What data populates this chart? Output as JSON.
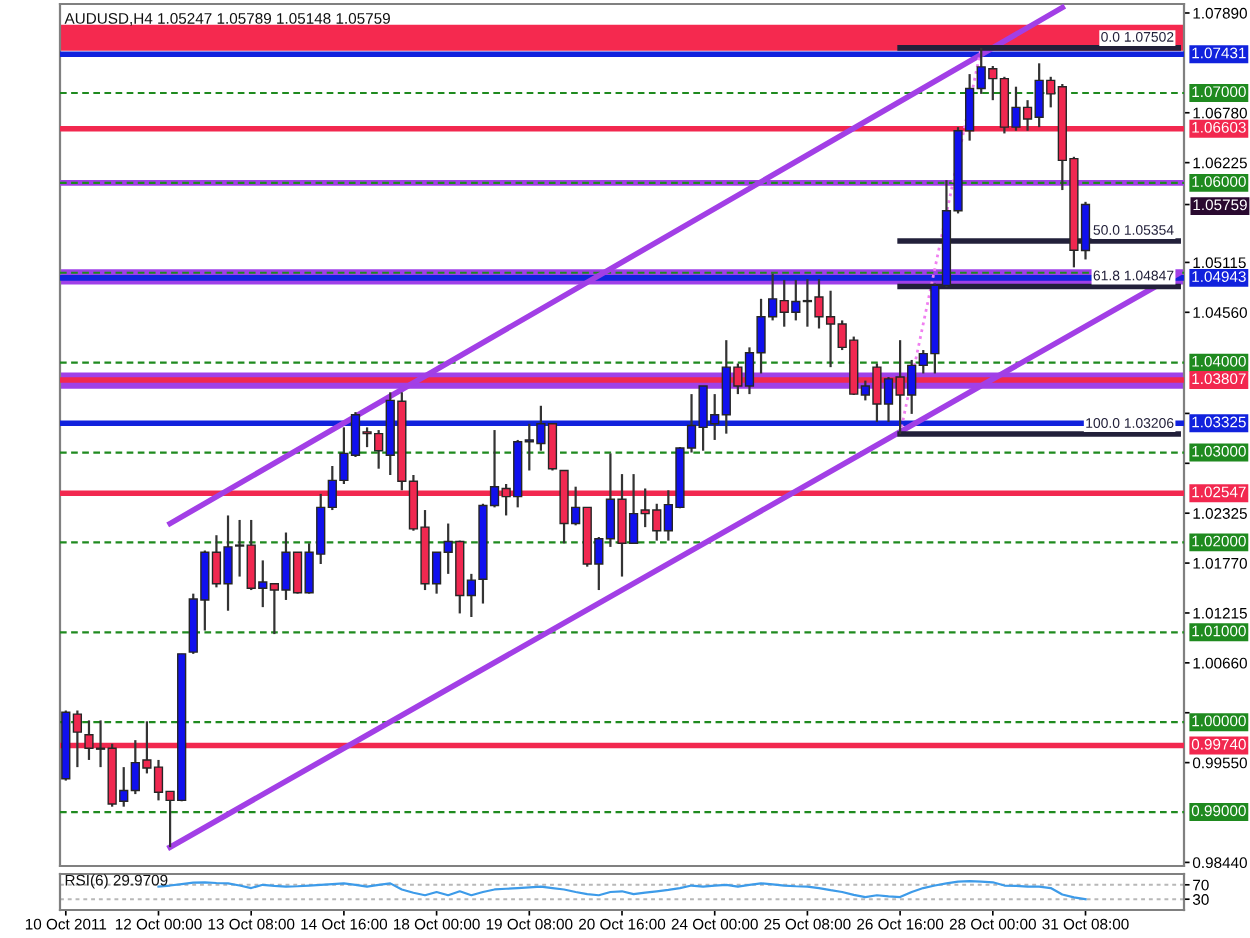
{
  "chart_data": [
    {
      "type": "candlestick",
      "title": "AUDUSD,H4 1.05247 1.05789 1.05148 1.05759",
      "categories": [
        null,
        null,
        null,
        null,
        null,
        null,
        null,
        null,
        null,
        null,
        null,
        null,
        null,
        null,
        null,
        null,
        null,
        null,
        null,
        null,
        null,
        null,
        null,
        null,
        null,
        null,
        null,
        null,
        null,
        null,
        null,
        null,
        null,
        null,
        null,
        null,
        null,
        null,
        null,
        null,
        null,
        null,
        null,
        null,
        null,
        null,
        null,
        null,
        null,
        null,
        null,
        null,
        null,
        null,
        null,
        null,
        null,
        null,
        null,
        null,
        null,
        null,
        null,
        null,
        null,
        null,
        null,
        null,
        null,
        null,
        null,
        null,
        null,
        null,
        null,
        null,
        null,
        null,
        null,
        null,
        null,
        null,
        null,
        null,
        null,
        null,
        null,
        null,
        null,
        null,
        null,
        null,
        null,
        null,
        null,
        null,
        null
      ],
      "ohlc": [
        [
          0.9937,
          1.0013,
          0.9935,
          1.0011
        ],
        [
          1.0009,
          1.0013,
          0.995,
          0.9989
        ],
        [
          0.9986,
          1.0002,
          0.9958,
          0.9971
        ],
        [
          0.9971,
          1.0002,
          0.995,
          0.997
        ],
        [
          0.9971,
          0.9976,
          0.9906,
          0.9909
        ],
        [
          0.9912,
          0.995,
          0.9906,
          0.9924
        ],
        [
          0.9924,
          0.998,
          0.992,
          0.9955
        ],
        [
          0.9958,
          1.0001,
          0.9943,
          0.9949
        ],
        [
          0.995,
          0.9958,
          0.9913,
          0.9922
        ],
        [
          0.9923,
          0.9923,
          0.9861,
          0.9913
        ],
        [
          0.9913,
          1.0076,
          0.9912,
          1.0076
        ],
        [
          1.0078,
          1.0143,
          1.0076,
          1.0137
        ],
        [
          1.0136,
          1.0191,
          1.0102,
          1.0189
        ],
        [
          1.0189,
          1.0208,
          1.015,
          1.0154
        ],
        [
          1.0154,
          1.023,
          1.0124,
          1.0195
        ],
        [
          1.0196,
          1.0225,
          1.0162,
          1.0197
        ],
        [
          1.0197,
          1.0225,
          1.0147,
          1.0149
        ],
        [
          1.0149,
          1.018,
          1.0128,
          1.0156
        ],
        [
          1.0154,
          1.0154,
          1.0098,
          1.0147
        ],
        [
          1.0147,
          1.0211,
          1.0136,
          1.0189
        ],
        [
          1.0189,
          1.0189,
          1.0143,
          1.0144
        ],
        [
          1.0144,
          1.0199,
          1.0143,
          1.0189
        ],
        [
          1.0187,
          1.0254,
          1.0176,
          1.0239
        ],
        [
          1.0239,
          1.0285,
          1.0236,
          1.0269
        ],
        [
          1.0269,
          1.0328,
          1.0265,
          1.0299
        ],
        [
          1.0297,
          1.0345,
          1.0295,
          1.0342
        ],
        [
          1.0323,
          1.0328,
          1.0306,
          1.0321
        ],
        [
          1.0321,
          1.0325,
          1.0282,
          1.0302
        ],
        [
          1.0297,
          1.0367,
          1.0275,
          1.0358
        ],
        [
          1.0357,
          1.0367,
          1.0258,
          1.0268
        ],
        [
          1.0268,
          1.0275,
          1.0213,
          1.0215
        ],
        [
          1.0217,
          1.0236,
          1.0147,
          1.0154
        ],
        [
          1.0154,
          1.0189,
          1.0143,
          1.0189
        ],
        [
          1.0189,
          1.0221,
          1.0165,
          1.0201
        ],
        [
          1.0201,
          1.0202,
          1.0121,
          1.0141
        ],
        [
          1.0141,
          1.0165,
          1.0117,
          1.0158
        ],
        [
          1.0159,
          1.0243,
          1.0132,
          1.0241
        ],
        [
          1.0241,
          1.0325,
          1.0239,
          1.0262
        ],
        [
          1.026,
          1.0265,
          1.023,
          1.0251
        ],
        [
          1.0251,
          1.0314,
          1.0239,
          1.0312
        ],
        [
          1.0312,
          1.0332,
          1.028,
          1.0314
        ],
        [
          1.031,
          1.0352,
          1.0302,
          1.0332
        ],
        [
          1.0332,
          1.0332,
          1.028,
          1.0282
        ],
        [
          1.028,
          1.028,
          1.0199,
          1.0221
        ],
        [
          1.0221,
          1.0262,
          1.0219,
          1.0239
        ],
        [
          1.0239,
          1.0239,
          1.0173,
          1.0176
        ],
        [
          1.0176,
          1.0206,
          1.0147,
          1.0204
        ],
        [
          1.0204,
          1.0299,
          1.0195,
          1.0248
        ],
        [
          1.0248,
          1.0276,
          1.0162,
          1.0199
        ],
        [
          1.0199,
          1.0276,
          1.0199,
          1.0232
        ],
        [
          1.0236,
          1.026,
          1.0217,
          1.0232
        ],
        [
          1.0236,
          1.0243,
          1.0202,
          1.0213
        ],
        [
          1.0213,
          1.0258,
          1.0202,
          1.0242
        ],
        [
          1.0239,
          1.0306,
          1.0238,
          1.0305
        ],
        [
          1.0305,
          1.0365,
          1.03,
          1.033
        ],
        [
          1.0328,
          1.0374,
          1.0302,
          1.0374
        ],
        [
          1.0332,
          1.0365,
          1.0314,
          1.0342
        ],
        [
          1.0342,
          1.0425,
          1.0321,
          1.0395
        ],
        [
          1.0395,
          1.0399,
          1.0365,
          1.0374
        ],
        [
          1.0374,
          1.0417,
          1.0365,
          1.0411
        ],
        [
          1.0411,
          1.0471,
          1.0388,
          1.0451
        ],
        [
          1.0451,
          1.0499,
          1.0447,
          1.0471
        ],
        [
          1.0469,
          1.0492,
          1.044,
          1.0456
        ],
        [
          1.0456,
          1.0492,
          1.0447,
          1.0468
        ],
        [
          1.0468,
          1.0493,
          1.044,
          1.0469
        ],
        [
          1.0473,
          1.0493,
          1.0438,
          1.0451
        ],
        [
          1.0451,
          1.048,
          1.0395,
          1.0443
        ],
        [
          1.0443,
          1.0447,
          1.0414,
          1.0417
        ],
        [
          1.0425,
          1.0429,
          1.0364,
          1.0365
        ],
        [
          1.0364,
          1.038,
          1.0358,
          1.0374
        ],
        [
          1.0395,
          1.0399,
          1.0334,
          1.0354
        ],
        [
          1.0354,
          1.0384,
          1.0334,
          1.0382
        ],
        [
          1.0384,
          1.0425,
          1.03206,
          1.0364
        ],
        [
          1.0364,
          1.0403,
          1.0343,
          1.0397
        ],
        [
          1.0397,
          1.0414,
          1.0388,
          1.041
        ],
        [
          1.041,
          1.0488,
          1.0388,
          1.0486
        ],
        [
          1.0486,
          1.0603,
          1.0484,
          1.0569
        ],
        [
          1.0569,
          1.0662,
          1.0566,
          1.0658
        ],
        [
          1.0658,
          1.0721,
          1.0647,
          1.0705
        ],
        [
          1.0705,
          1.07502,
          1.0699,
          1.0729
        ],
        [
          1.0727,
          1.073,
          1.0692,
          1.0716
        ],
        [
          1.0716,
          1.0718,
          1.0655,
          1.0662
        ],
        [
          1.0662,
          1.0707,
          1.0658,
          1.0684
        ],
        [
          1.0684,
          1.0692,
          1.0658,
          1.0671
        ],
        [
          1.0673,
          1.0733,
          1.0662,
          1.0714
        ],
        [
          1.0714,
          1.0718,
          1.0684,
          1.0699
        ],
        [
          1.0707,
          1.071,
          1.0592,
          1.0625
        ],
        [
          1.0627,
          1.0629,
          1.0506,
          1.0525
        ],
        [
          1.05247,
          1.05789,
          1.05148,
          1.05759
        ],
        null,
        null,
        null,
        null,
        null,
        null,
        null,
        null
      ],
      "colors": [
        "#1010ee",
        "#f02850",
        "#f02850",
        "#f02850",
        "#f02850",
        "#1010ee",
        "#1010ee",
        "#f02850",
        "#f02850",
        "#f02850",
        "#1010ee",
        "#1010ee",
        "#1010ee",
        "#f02850",
        "#1010ee",
        "#1010ee",
        "#f02850",
        "#1010ee",
        "#f02850",
        "#1010ee",
        "#f02850",
        "#1010ee",
        "#1010ee",
        "#1010ee",
        "#1010ee",
        "#1010ee",
        "#f02850",
        "#f02850",
        "#1010ee",
        "#f02850",
        "#f02850",
        "#f02850",
        "#1010ee",
        "#1010ee",
        "#f02850",
        "#1010ee",
        "#1010ee",
        "#1010ee",
        "#f02850",
        "#1010ee",
        "#1010ee",
        "#1010ee",
        "#f02850",
        "#f02850",
        "#1010ee",
        "#f02850",
        "#1010ee",
        "#1010ee",
        "#f02850",
        "#1010ee",
        "#f02850",
        "#f02850",
        "#1010ee",
        "#1010ee",
        "#1010ee",
        "#1010ee",
        "#1010ee",
        "#1010ee",
        "#f02850",
        "#1010ee",
        "#1010ee",
        "#1010ee",
        "#f02850",
        "#1010ee",
        "#1010ee",
        "#f02850",
        "#f02850",
        "#f02850",
        "#f02850",
        "#1010ee",
        "#f02850",
        "#1010ee",
        "#f02850",
        "#1010ee",
        "#1010ee",
        "#1010ee",
        "#1010ee",
        "#1010ee",
        "#1010ee",
        "#1010ee",
        "#f02850",
        "#f02850",
        "#1010ee",
        "#f02850",
        "#1010ee",
        "#f02850",
        "#f02850",
        "#f02850",
        "#1010ee",
        null,
        null,
        null,
        null,
        null,
        null,
        null,
        null
      ],
      "series": [
        {
          "type": "line",
          "color": "#a23fe6",
          "values": [
            null,
            null,
            null,
            null,
            null,
            null,
            null,
            null,
            null,
            1.0221,
            null,
            null,
            null,
            null,
            null,
            null,
            null,
            null,
            null,
            null,
            null,
            null,
            null,
            null,
            null,
            null,
            null,
            null,
            null,
            null,
            null,
            null,
            null,
            null,
            null,
            null,
            null,
            null,
            null,
            null,
            null,
            null,
            null,
            null,
            null,
            null,
            null,
            null,
            null,
            null,
            null,
            null,
            null,
            null,
            null,
            null,
            null,
            null,
            null,
            null,
            null,
            null,
            null,
            null,
            null,
            null,
            null,
            null,
            null,
            null,
            null,
            null,
            null,
            null,
            null,
            null,
            null,
            null,
            null,
            null,
            null,
            null,
            null,
            null,
            null,
            null,
            1.0795,
            null,
            null,
            null,
            null,
            null,
            null,
            null,
            null,
            null,
            null
          ]
        },
        {
          "type": "line",
          "color": "#a23fe6",
          "values": [
            null,
            null,
            null,
            null,
            null,
            null,
            null,
            null,
            null,
            0.9861,
            null,
            null,
            null,
            null,
            null,
            null,
            null,
            null,
            null,
            null,
            null,
            null,
            null,
            null,
            null,
            null,
            null,
            null,
            null,
            null,
            null,
            null,
            null,
            null,
            null,
            null,
            null,
            null,
            null,
            null,
            null,
            null,
            null,
            null,
            null,
            null,
            null,
            null,
            null,
            null,
            null,
            null,
            null,
            null,
            null,
            null,
            null,
            null,
            null,
            null,
            null,
            null,
            null,
            null,
            null,
            null,
            null,
            null,
            null,
            null,
            null,
            null,
            null,
            null,
            null,
            null,
            null,
            null,
            null,
            null,
            null,
            null,
            null,
            null,
            null,
            null,
            null,
            null,
            null,
            null,
            null,
            null,
            null,
            null,
            null,
            null,
            1.0499
          ]
        },
        {
          "type": "line",
          "color": "#f07ff0",
          "line_style": "dotted",
          "values": [
            null,
            null,
            null,
            null,
            null,
            null,
            null,
            null,
            null,
            null,
            null,
            null,
            null,
            null,
            null,
            null,
            null,
            null,
            null,
            null,
            null,
            null,
            null,
            null,
            null,
            null,
            null,
            null,
            null,
            null,
            null,
            null,
            null,
            null,
            null,
            null,
            null,
            null,
            null,
            null,
            null,
            null,
            null,
            null,
            null,
            null,
            null,
            null,
            null,
            null,
            null,
            null,
            null,
            null,
            null,
            null,
            null,
            null,
            null,
            null,
            null,
            null,
            null,
            null,
            null,
            null,
            null,
            null,
            null,
            null,
            null,
            null,
            1.03206,
            null,
            null,
            null,
            null,
            null,
            null,
            1.07502,
            null,
            null,
            null,
            null,
            null,
            null,
            null,
            null,
            null,
            null,
            null,
            null,
            null,
            null,
            null,
            null,
            null
          ]
        },
        {
          "type": "line",
          "name": "0.0 1.07502",
          "color": "#22203a",
          "values": [
            null,
            null,
            null,
            null,
            null,
            null,
            null,
            null,
            null,
            null,
            null,
            null,
            null,
            null,
            null,
            null,
            null,
            null,
            null,
            null,
            null,
            null,
            null,
            null,
            null,
            null,
            null,
            null,
            null,
            null,
            null,
            null,
            null,
            null,
            null,
            null,
            null,
            null,
            null,
            null,
            null,
            null,
            null,
            null,
            null,
            null,
            null,
            null,
            null,
            null,
            null,
            null,
            null,
            null,
            null,
            null,
            null,
            null,
            null,
            null,
            null,
            null,
            null,
            null,
            null,
            null,
            null,
            null,
            null,
            null,
            null,
            null,
            1.07502,
            null,
            null,
            null,
            null,
            null,
            null,
            null,
            null,
            null,
            null,
            null,
            null,
            null,
            null,
            null,
            null,
            null,
            null,
            null,
            null,
            null,
            null,
            null,
            1.07502
          ]
        },
        {
          "type": "line",
          "name": "50.0 1.05354",
          "color": "#22203a",
          "values": [
            null,
            null,
            null,
            null,
            null,
            null,
            null,
            null,
            null,
            null,
            null,
            null,
            null,
            null,
            null,
            null,
            null,
            null,
            null,
            null,
            null,
            null,
            null,
            null,
            null,
            null,
            null,
            null,
            null,
            null,
            null,
            null,
            null,
            null,
            null,
            null,
            null,
            null,
            null,
            null,
            null,
            null,
            null,
            null,
            null,
            null,
            null,
            null,
            null,
            null,
            null,
            null,
            null,
            null,
            null,
            null,
            null,
            null,
            null,
            null,
            null,
            null,
            null,
            null,
            null,
            null,
            null,
            null,
            null,
            null,
            null,
            null,
            1.05354,
            null,
            null,
            null,
            null,
            null,
            null,
            null,
            null,
            null,
            null,
            null,
            null,
            null,
            null,
            null,
            null,
            null,
            null,
            null,
            null,
            null,
            null,
            null,
            1.05354
          ]
        },
        {
          "type": "line",
          "name": "61.8 1.04847",
          "color": "#22203a",
          "values": [
            null,
            null,
            null,
            null,
            null,
            null,
            null,
            null,
            null,
            null,
            null,
            null,
            null,
            null,
            null,
            null,
            null,
            null,
            null,
            null,
            null,
            null,
            null,
            null,
            null,
            null,
            null,
            null,
            null,
            null,
            null,
            null,
            null,
            null,
            null,
            null,
            null,
            null,
            null,
            null,
            null,
            null,
            null,
            null,
            null,
            null,
            null,
            null,
            null,
            null,
            null,
            null,
            null,
            null,
            null,
            null,
            null,
            null,
            null,
            null,
            null,
            null,
            null,
            null,
            null,
            null,
            null,
            null,
            null,
            null,
            null,
            null,
            1.04847,
            null,
            null,
            null,
            null,
            null,
            null,
            null,
            null,
            null,
            null,
            null,
            null,
            null,
            null,
            null,
            null,
            null,
            null,
            null,
            null,
            null,
            null,
            null,
            1.04847
          ]
        },
        {
          "type": "line",
          "name": "100.0 1.03206",
          "color": "#22203a",
          "values": [
            null,
            null,
            null,
            null,
            null,
            null,
            null,
            null,
            null,
            null,
            null,
            null,
            null,
            null,
            null,
            null,
            null,
            null,
            null,
            null,
            null,
            null,
            null,
            null,
            null,
            null,
            null,
            null,
            null,
            null,
            null,
            null,
            null,
            null,
            null,
            null,
            null,
            null,
            null,
            null,
            null,
            null,
            null,
            null,
            null,
            null,
            null,
            null,
            null,
            null,
            null,
            null,
            null,
            null,
            null,
            null,
            null,
            null,
            null,
            null,
            null,
            null,
            null,
            null,
            null,
            null,
            null,
            null,
            null,
            null,
            null,
            null,
            1.03206,
            null,
            null,
            null,
            null,
            null,
            null,
            null,
            null,
            null,
            null,
            null,
            null,
            null,
            null,
            null,
            null,
            null,
            null,
            null,
            null,
            null,
            null,
            null,
            1.03206
          ]
        }
      ],
      "bands": [
        {
          "axis": "y",
          "from": 1.0747,
          "to": 1.0776,
          "color": "#f5294f"
        },
        {
          "axis": "y",
          "from": 1.0487,
          "to": 1.0504,
          "color": "#a040e8"
        },
        {
          "axis": "y",
          "from": 1.0371,
          "to": 1.0389,
          "color": "#a040e8"
        }
      ],
      "ref_lines": [
        {
          "axis": "y",
          "value": 1.07431,
          "label": "1.07431",
          "color": "#1122dd"
        },
        {
          "axis": "y",
          "value": 1.07,
          "label": "1.07000",
          "color": "#1f8a1f",
          "line_style": "dashed"
        },
        {
          "axis": "y",
          "value": 1.06603,
          "label": "1.06603",
          "color": "#f2284f"
        },
        {
          "axis": "y",
          "value": 1.06,
          "color": "#a23fe6"
        },
        {
          "axis": "y",
          "value": 1.06,
          "label": "1.06000",
          "color": "#1f8a1f",
          "line_style": "dashed"
        },
        {
          "axis": "y",
          "value": 1.05,
          "color": "#1f8a1f",
          "line_style": "dashed"
        },
        {
          "axis": "y",
          "value": 1.04943,
          "label": "1.04943",
          "color": "#1122dd"
        },
        {
          "axis": "y",
          "value": 1.04,
          "label": "1.04000",
          "color": "#1f8a1f",
          "line_style": "dashed"
        },
        {
          "axis": "y",
          "value": 1.03807,
          "label": "1.03807",
          "color": "#f2284f"
        },
        {
          "axis": "y",
          "value": 1.03325,
          "label": "1.03325",
          "color": "#1122dd"
        },
        {
          "axis": "y",
          "value": 1.03,
          "label": "1.03000",
          "color": "#1f8a1f",
          "line_style": "dashed"
        },
        {
          "axis": "y",
          "value": 1.02547,
          "label": "1.02547",
          "color": "#f2284f"
        },
        {
          "axis": "y",
          "value": 1.02,
          "label": "1.02000",
          "color": "#1f8a1f",
          "line_style": "dashed"
        },
        {
          "axis": "y",
          "value": 1.01,
          "label": "1.01000",
          "color": "#1f8a1f",
          "line_style": "dashed"
        },
        {
          "axis": "y",
          "value": 1.0,
          "label": "1.00000",
          "color": "#1f8a1f",
          "line_style": "dashed"
        },
        {
          "axis": "y",
          "value": 0.9974,
          "label": "0.99740",
          "color": "#f2284f"
        },
        {
          "axis": "y",
          "value": 0.99,
          "label": "0.99000",
          "color": "#1f8a1f",
          "line_style": "dashed"
        }
      ],
      "ylim": [
        0.984,
        1.0799
      ],
      "yticks": [
        {
          "value": 1.0789,
          "label": "1.07890"
        },
        {
          "value": 1.0678,
          "label": "1.06780"
        },
        1.06225,
        1.05759,
        1.05115,
        {
          "value": 1.0456,
          "label": "1.04560"
        },
        {
          "value": 1.03435,
          "label": null
        },
        {
          "value": 1.0288,
          "label": null
        },
        1.02325,
        {
          "value": 1.0177,
          "label": "1.01770"
        },
        1.01215,
        {
          "value": 1.0066,
          "label": "1.00660"
        },
        {
          "value": 1.00105,
          "label": null
        },
        {
          "value": 0.9955,
          "label": "0.99550"
        },
        {
          "value": 0.9844,
          "label": "0.98440"
        }
      ],
      "tick_labels": "y"
    },
    {
      "type": "line",
      "title": "RSI(6) 29.9709",
      "categories": [
        "10 Oct 2011",
        null,
        null,
        null,
        null,
        null,
        null,
        null,
        "12 Oct 00:00",
        null,
        null,
        null,
        null,
        null,
        null,
        null,
        "13 Oct 08:00",
        null,
        null,
        null,
        null,
        null,
        null,
        null,
        "14 Oct 16:00",
        null,
        null,
        null,
        null,
        null,
        null,
        null,
        "18 Oct 00:00",
        null,
        null,
        null,
        null,
        null,
        null,
        null,
        "19 Oct 08:00",
        null,
        null,
        null,
        null,
        null,
        null,
        null,
        "20 Oct 16:00",
        null,
        null,
        null,
        null,
        null,
        null,
        null,
        "24 Oct 00:00",
        null,
        null,
        null,
        null,
        null,
        null,
        null,
        "25 Oct 08:00",
        null,
        null,
        null,
        null,
        null,
        null,
        null,
        "26 Oct 16:00",
        null,
        null,
        null,
        null,
        null,
        null,
        null,
        "28 Oct 00:00",
        null,
        null,
        null,
        null,
        null,
        null,
        null,
        "31 Oct 08:00",
        null,
        null,
        null,
        null,
        null,
        null,
        null,
        null
      ],
      "values": [
        null,
        null,
        null,
        null,
        null,
        null,
        null,
        null,
        65,
        68,
        72,
        76,
        77,
        75,
        74,
        68,
        61,
        70,
        67,
        65,
        66,
        68,
        70,
        72,
        74,
        70,
        65,
        70,
        74,
        57,
        48,
        41,
        50,
        41,
        52,
        41,
        50,
        57,
        59,
        61,
        63,
        65,
        61,
        57,
        50,
        44,
        41,
        50,
        52,
        44,
        48,
        52,
        56,
        61,
        68,
        65,
        68,
        70,
        65,
        70,
        74,
        71,
        68,
        66,
        65,
        61,
        55,
        50,
        42,
        36,
        41,
        38,
        36,
        50,
        61,
        68,
        74,
        79,
        80,
        79,
        77,
        68,
        67,
        65,
        65,
        61,
        43,
        35,
        29.9709,
        null,
        null,
        null,
        null,
        null,
        null,
        null,
        null
      ],
      "color": "#3d9be9",
      "ylim": [
        0,
        100
      ],
      "yticks": [
        30,
        70
      ],
      "grid": "y"
    }
  ]
}
